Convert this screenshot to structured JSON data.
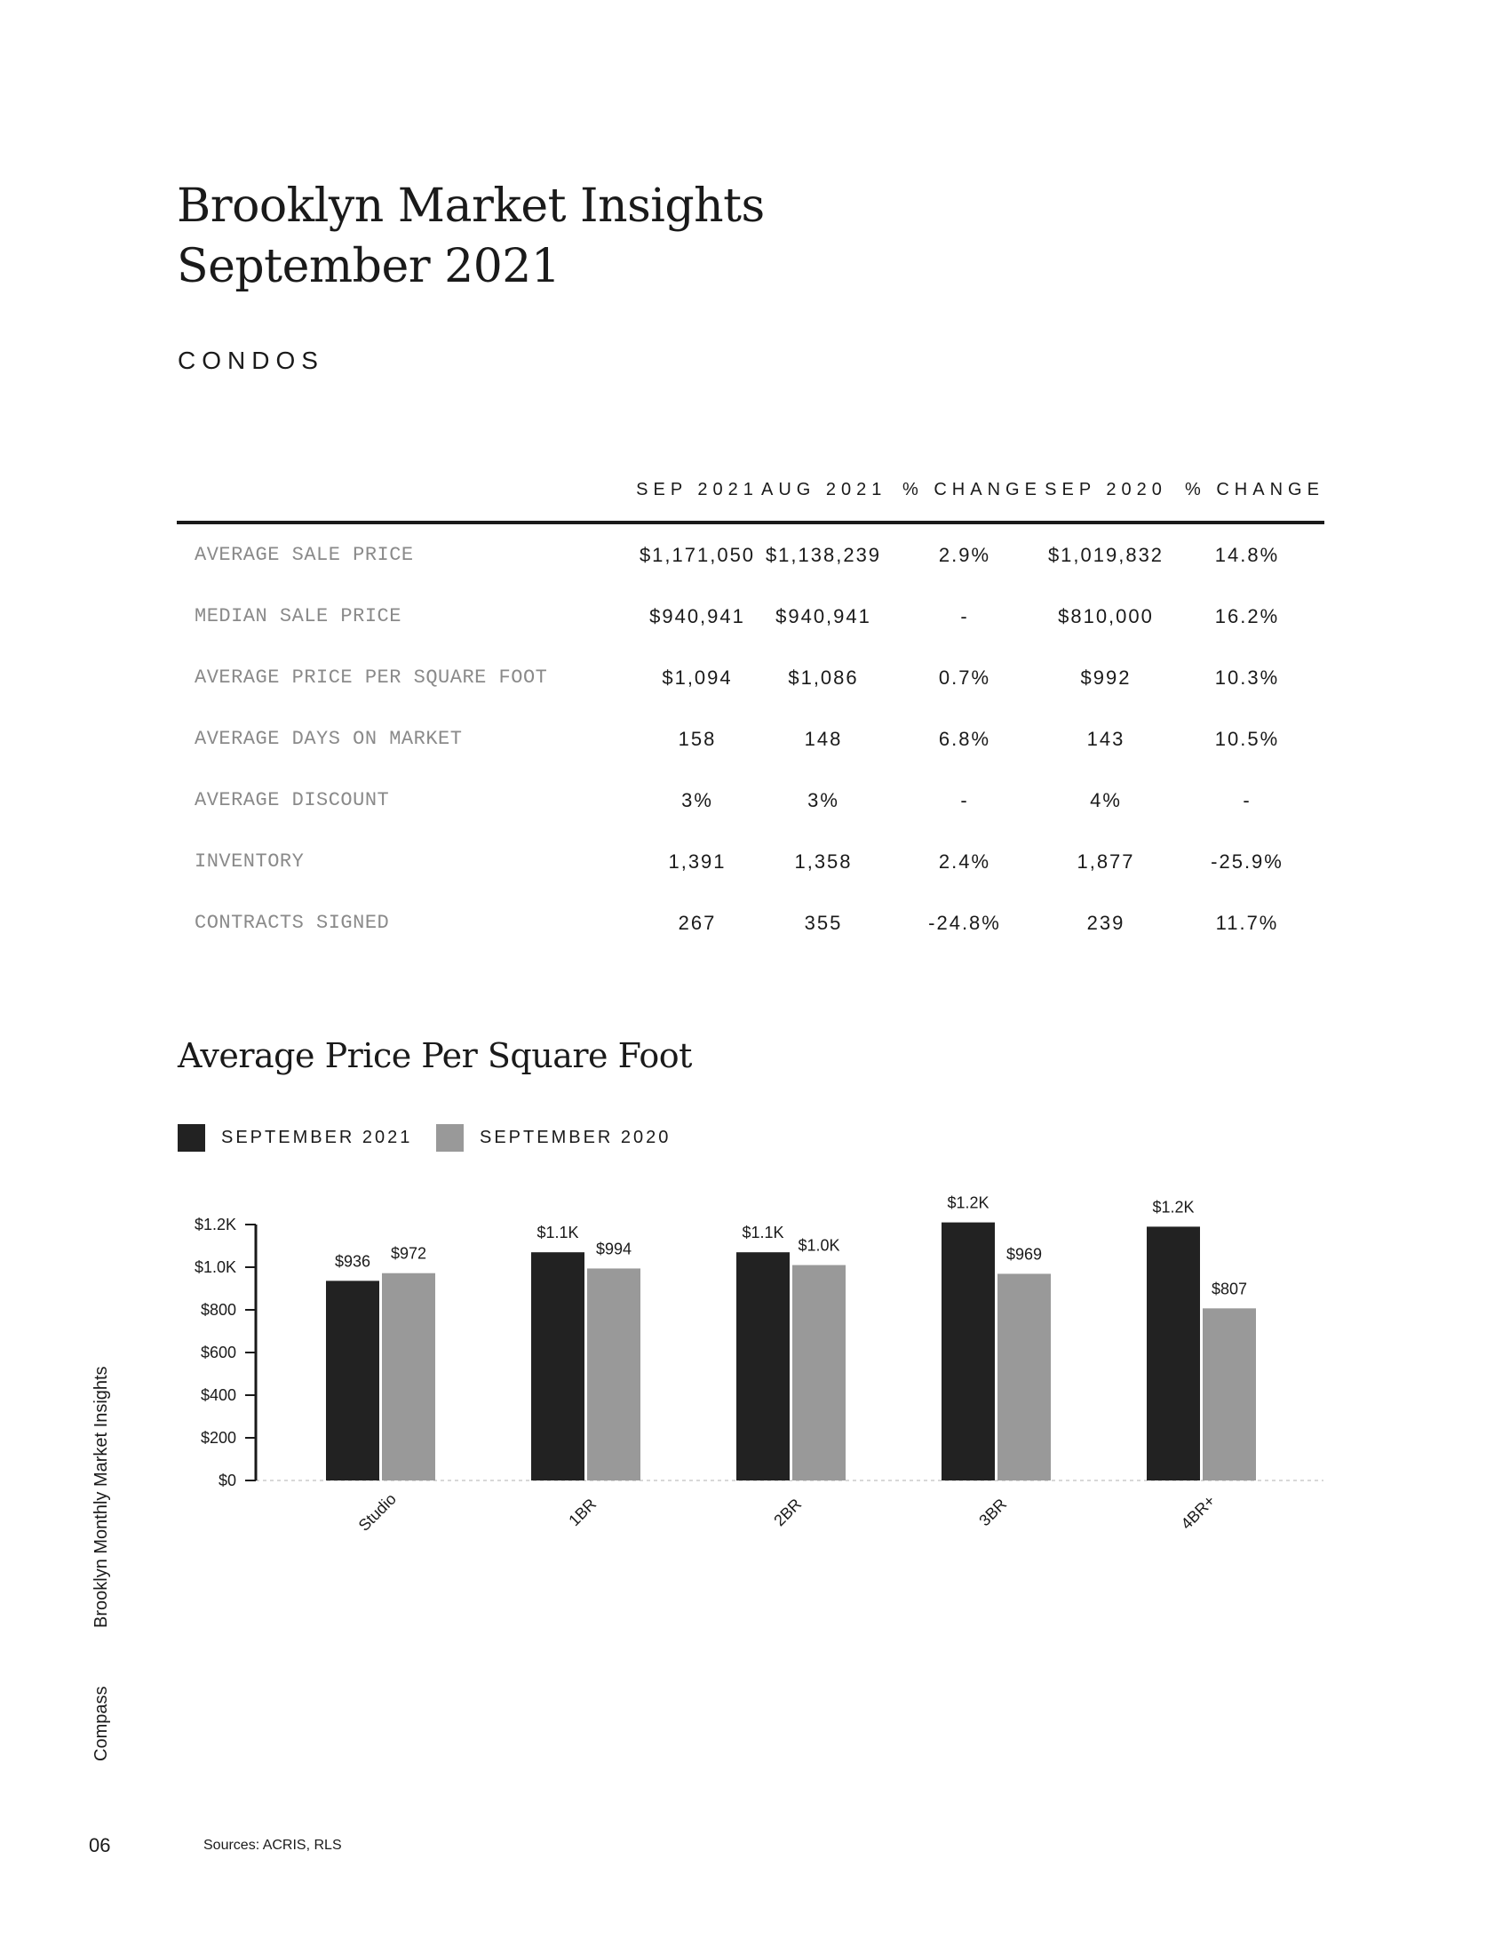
{
  "report": {
    "title_line1": "Brooklyn Market Insights",
    "title_line2": "September 2021",
    "section": "CONDOS"
  },
  "table": {
    "columns": [
      "SEP 2021",
      "AUG 2021",
      "% CHANGE",
      "SEP 2020",
      "% CHANGE"
    ],
    "rows": [
      {
        "label": "AVERAGE SALE PRICE",
        "values": [
          "$1,171,050",
          "$1,138,239",
          "2.9%",
          "$1,019,832",
          "14.8%"
        ]
      },
      {
        "label": "MEDIAN SALE PRICE",
        "values": [
          "$940,941",
          "$940,941",
          "-",
          "$810,000",
          "16.2%"
        ]
      },
      {
        "label": "AVERAGE PRICE PER SQUARE FOOT",
        "values": [
          "$1,094",
          "$1,086",
          "0.7%",
          "$992",
          "10.3%"
        ]
      },
      {
        "label": "AVERAGE DAYS ON MARKET",
        "values": [
          "158",
          "148",
          "6.8%",
          "143",
          "10.5%"
        ]
      },
      {
        "label": "AVERAGE DISCOUNT",
        "values": [
          "3%",
          "3%",
          "-",
          "4%",
          "-"
        ]
      },
      {
        "label": "INVENTORY",
        "values": [
          "1,391",
          "1,358",
          "2.4%",
          "1,877",
          "-25.9%"
        ]
      },
      {
        "label": "CONTRACTS SIGNED",
        "values": [
          "267",
          "355",
          "-24.8%",
          "239",
          "11.7%"
        ]
      }
    ]
  },
  "chart_data": {
    "type": "bar",
    "title": "Average Price Per Square Foot",
    "categories": [
      "Studio",
      "1BR",
      "2BR",
      "3BR",
      "4BR+"
    ],
    "series": [
      {
        "name": "SEPTEMBER 2021",
        "color": "#222222",
        "values": [
          936,
          1070,
          1070,
          1210,
          1190
        ],
        "labels": [
          "$936",
          "$1.1K",
          "$1.1K",
          "$1.2K",
          "$1.2K"
        ]
      },
      {
        "name": "SEPTEMBER 2020",
        "color": "#999999",
        "values": [
          972,
          994,
          1010,
          969,
          807
        ],
        "labels": [
          "$972",
          "$994",
          "$1.0K",
          "$969",
          "$807"
        ]
      }
    ],
    "y_ticks": [
      {
        "value": 0,
        "label": "$0"
      },
      {
        "value": 200,
        "label": "$200"
      },
      {
        "value": 400,
        "label": "$400"
      },
      {
        "value": 600,
        "label": "$600"
      },
      {
        "value": 800,
        "label": "$800"
      },
      {
        "value": 1000,
        "label": "$1.0K"
      },
      {
        "value": 1200,
        "label": "$1.2K"
      }
    ],
    "ylim": [
      0,
      1200
    ],
    "legend_position": "top-left",
    "xlabel": "",
    "ylabel": ""
  },
  "footer": {
    "side_brand": "Compass",
    "side_title": "Brooklyn Monthly Market Insights",
    "page_number": "06",
    "sources": "Sources: ACRIS, RLS"
  }
}
